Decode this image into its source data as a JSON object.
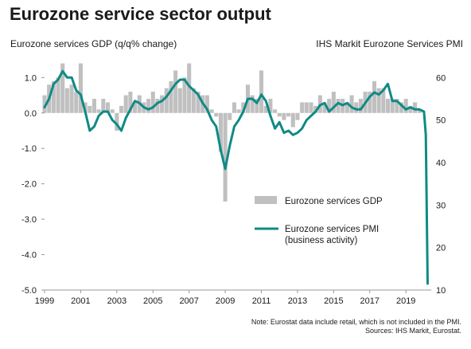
{
  "chart_data": {
    "type": "bar+line",
    "title": "Eurozone service sector output",
    "left_axis_label": "Eurozone services GDP (q/q% change)",
    "right_axis_label": "IHS Markit Eurozone Services PMI",
    "left_ticks": [
      "1.0",
      "0.0",
      "-1.0",
      "-2.0",
      "-3.0",
      "-4.0",
      "-5.0"
    ],
    "left_tick_values": [
      1,
      0,
      -1,
      -2,
      -3,
      -4,
      -5
    ],
    "left_range": [
      -5,
      1.3
    ],
    "right_ticks": [
      "60",
      "50",
      "40",
      "30",
      "20",
      "10"
    ],
    "right_tick_values": [
      60,
      50,
      40,
      30,
      20,
      10
    ],
    "right_range": [
      10,
      62.5
    ],
    "x_ticks": [
      "1999",
      "2001",
      "2003",
      "2005",
      "2007",
      "2009",
      "2011",
      "2013",
      "2015",
      "2017",
      "2019"
    ],
    "x_tick_values": [
      1999,
      2001,
      2003,
      2005,
      2007,
      2009,
      2011,
      2013,
      2015,
      2017,
      2019
    ],
    "x_range": [
      1999,
      2020.4
    ],
    "legend": {
      "gdp": "Eurozone services GDP",
      "pmi_line1": "Eurozone services PMI",
      "pmi_line2": "(business activity)"
    },
    "colors": {
      "gdp": "#c0c0c0",
      "pmi": "#0f8a86",
      "axis": "#999999"
    },
    "gdp_series": {
      "name": "Eurozone services GDP",
      "x": [
        1999.0,
        1999.25,
        1999.5,
        1999.75,
        2000.0,
        2000.25,
        2000.5,
        2000.75,
        2001.0,
        2001.25,
        2001.5,
        2001.75,
        2002.0,
        2002.25,
        2002.5,
        2002.75,
        2003.0,
        2003.25,
        2003.5,
        2003.75,
        2004.0,
        2004.25,
        2004.5,
        2004.75,
        2005.0,
        2005.25,
        2005.5,
        2005.75,
        2006.0,
        2006.25,
        2006.5,
        2006.75,
        2007.0,
        2007.25,
        2007.5,
        2007.75,
        2008.0,
        2008.25,
        2008.5,
        2008.75,
        2009.0,
        2009.25,
        2009.5,
        2009.75,
        2010.0,
        2010.25,
        2010.5,
        2010.75,
        2011.0,
        2011.25,
        2011.5,
        2011.75,
        2012.0,
        2012.25,
        2012.5,
        2012.75,
        2013.0,
        2013.25,
        2013.5,
        2013.75,
        2014.0,
        2014.25,
        2014.5,
        2014.75,
        2015.0,
        2015.25,
        2015.5,
        2015.75,
        2016.0,
        2016.25,
        2016.5,
        2016.75,
        2017.0,
        2017.25,
        2017.5,
        2017.75,
        2018.0,
        2018.25,
        2018.5,
        2018.75,
        2019.0,
        2019.25,
        2019.5,
        2019.75
      ],
      "values": [
        0.5,
        0.8,
        0.9,
        1.0,
        1.4,
        0.7,
        0.8,
        0.6,
        1.4,
        0.3,
        0.2,
        0.4,
        0.1,
        0.4,
        0.3,
        0.1,
        -0.5,
        0.2,
        0.5,
        0.6,
        0.3,
        0.5,
        0.3,
        0.4,
        0.6,
        0.4,
        0.5,
        0.7,
        0.9,
        1.2,
        0.7,
        1.0,
        1.4,
        0.7,
        0.6,
        0.5,
        0.5,
        0.1,
        -0.1,
        -1.1,
        -2.5,
        -0.2,
        0.3,
        0.1,
        0.3,
        0.8,
        0.5,
        0.4,
        1.2,
        0.2,
        0.4,
        0.1,
        -0.1,
        -0.2,
        -0.1,
        -0.4,
        -0.2,
        0.3,
        0.3,
        0.3,
        0.2,
        0.5,
        0.3,
        0.4,
        0.6,
        0.4,
        0.4,
        0.3,
        0.5,
        0.3,
        0.4,
        0.6,
        0.6,
        0.9,
        0.7,
        0.7,
        0.4,
        0.4,
        0.4,
        0.3,
        0.4,
        0.2,
        0.3,
        0.1
      ]
    },
    "pmi_series": {
      "name": "Eurozone services PMI",
      "x": [
        1999.0,
        1999.25,
        1999.5,
        1999.75,
        2000.0,
        2000.25,
        2000.5,
        2000.75,
        2001.0,
        2001.25,
        2001.5,
        2001.75,
        2002.0,
        2002.25,
        2002.5,
        2002.75,
        2003.0,
        2003.25,
        2003.5,
        2003.75,
        2004.0,
        2004.25,
        2004.5,
        2004.75,
        2005.0,
        2005.25,
        2005.5,
        2005.75,
        2006.0,
        2006.25,
        2006.5,
        2006.75,
        2007.0,
        2007.25,
        2007.5,
        2007.75,
        2008.0,
        2008.25,
        2008.5,
        2008.75,
        2009.0,
        2009.25,
        2009.5,
        2009.75,
        2010.0,
        2010.25,
        2010.5,
        2010.75,
        2011.0,
        2011.25,
        2011.5,
        2011.75,
        2012.0,
        2012.25,
        2012.5,
        2012.75,
        2013.0,
        2013.25,
        2013.5,
        2013.75,
        2014.0,
        2014.25,
        2014.5,
        2014.75,
        2015.0,
        2015.25,
        2015.5,
        2015.75,
        2016.0,
        2016.25,
        2016.5,
        2016.75,
        2017.0,
        2017.25,
        2017.5,
        2017.75,
        2018.0,
        2018.25,
        2018.5,
        2018.75,
        2019.0,
        2019.25,
        2019.5,
        2019.75,
        2020.0,
        2020.1,
        2020.2
      ],
      "values": [
        53.0,
        55.0,
        58.5,
        59.5,
        61.5,
        60.0,
        60.0,
        57.0,
        56.0,
        52.0,
        47.5,
        48.5,
        51.0,
        52.0,
        52.0,
        50.0,
        49.0,
        47.5,
        50.5,
        52.5,
        54.5,
        54.0,
        53.0,
        52.5,
        53.0,
        54.0,
        54.5,
        55.5,
        57.0,
        58.5,
        59.5,
        59.5,
        58.0,
        57.0,
        56.0,
        54.0,
        52.5,
        50.0,
        48.5,
        43.0,
        38.5,
        44.0,
        48.5,
        50.0,
        52.0,
        55.0,
        55.0,
        54.0,
        56.0,
        54.5,
        51.0,
        48.0,
        49.5,
        47.0,
        47.5,
        46.5,
        47.0,
        48.0,
        50.0,
        51.0,
        52.0,
        53.5,
        54.0,
        52.0,
        53.0,
        54.0,
        53.5,
        54.0,
        53.0,
        52.5,
        52.5,
        54.0,
        55.5,
        56.5,
        56.0,
        57.0,
        58.5,
        54.5,
        54.5,
        53.5,
        52.5,
        53.0,
        52.5,
        52.5,
        52.0,
        46.5,
        11.5
      ]
    }
  },
  "notes": {
    "line1": "Note: Eurostat data include retail, which is not included in the PMI.",
    "line2": "Sources: IHS Markit, Eurostat."
  }
}
